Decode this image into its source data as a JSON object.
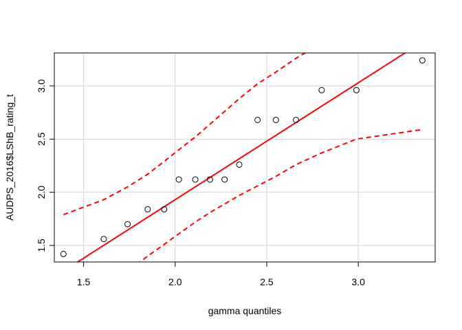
{
  "chart_data": {
    "type": "scatter",
    "title": "",
    "xlabel": "gamma quantiles",
    "ylabel": "AUDPS_2016$LShB_rating_t",
    "xlim": [
      1.34,
      3.42
    ],
    "ylim": [
      1.345,
      3.31
    ],
    "x_ticks": [
      "1.5",
      "2.0",
      "2.5",
      "3.0"
    ],
    "y_ticks": [
      "1.5",
      "2.0",
      "2.5",
      "3.0"
    ],
    "grid": true,
    "points": {
      "x": [
        1.39,
        1.61,
        1.74,
        1.85,
        1.94,
        2.02,
        2.11,
        2.19,
        2.27,
        2.35,
        2.45,
        2.55,
        2.66,
        2.8,
        2.99,
        3.35
      ],
      "y": [
        1.42,
        1.56,
        1.7,
        1.84,
        1.84,
        2.12,
        2.12,
        2.12,
        2.12,
        2.26,
        2.68,
        2.68,
        2.68,
        2.96,
        2.96,
        3.24
      ]
    },
    "reference_line": {
      "color": "#ff0000",
      "x": [
        1.34,
        3.42
      ],
      "y": [
        1.205,
        3.491
      ]
    },
    "confidence_band": {
      "color": "#ff0000",
      "style": "dashed",
      "upper": {
        "x": [
          1.39,
          1.5,
          1.61,
          1.74,
          1.85,
          1.94,
          2.02,
          2.11,
          2.19,
          2.27,
          2.35,
          2.45,
          2.55,
          2.66,
          2.73
        ],
        "y": [
          1.79,
          1.86,
          1.93,
          2.05,
          2.17,
          2.29,
          2.4,
          2.52,
          2.64,
          2.76,
          2.88,
          3.02,
          3.13,
          3.26,
          3.33
        ]
      },
      "lower": {
        "x": [
          1.79,
          1.85,
          1.94,
          2.02,
          2.11,
          2.19,
          2.27,
          2.35,
          2.45,
          2.55,
          2.66,
          2.8,
          2.99,
          3.35
        ],
        "y": [
          1.32,
          1.4,
          1.51,
          1.61,
          1.72,
          1.81,
          1.89,
          1.97,
          2.06,
          2.15,
          2.26,
          2.37,
          2.5,
          2.59
        ]
      }
    }
  }
}
